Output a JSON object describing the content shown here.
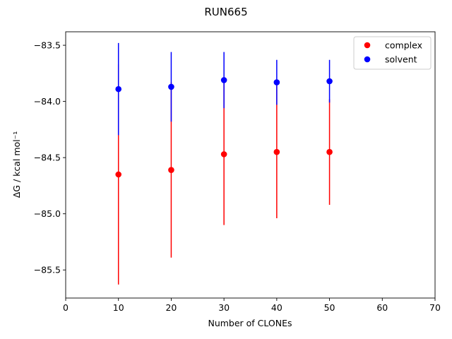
{
  "chart_data": {
    "type": "scatter",
    "title": "RUN665",
    "xlabel": "Number of CLONEs",
    "ylabel": "ΔG / kcal mol⁻¹",
    "xlim": [
      0,
      70
    ],
    "ylim": [
      -85.75,
      -83.38
    ],
    "xticks": [
      "0",
      "10",
      "20",
      "30",
      "40",
      "50",
      "60",
      "70"
    ],
    "yticks": [
      "−83.5",
      "−84.0",
      "−84.5",
      "−85.0",
      "−85.5"
    ],
    "xtick_values": [
      0,
      10,
      20,
      30,
      40,
      50,
      60,
      70
    ],
    "ytick_values": [
      -83.5,
      -84.0,
      -84.5,
      -85.0,
      -85.5
    ],
    "grid": false,
    "legend_position": "top-right",
    "series": [
      {
        "name": "complex",
        "color": "#ff0000",
        "x": [
          10,
          20,
          30,
          40,
          50
        ],
        "y": [
          -84.65,
          -84.61,
          -84.47,
          -84.45,
          -84.45
        ],
        "yerr": [
          0.98,
          0.78,
          0.63,
          0.59,
          0.47
        ]
      },
      {
        "name": "solvent",
        "color": "#0000ff",
        "x": [
          10,
          20,
          30,
          40,
          50
        ],
        "y": [
          -83.89,
          -83.87,
          -83.81,
          -83.83,
          -83.82
        ],
        "yerr": [
          0.41,
          0.31,
          0.25,
          0.2,
          0.19
        ]
      }
    ]
  }
}
